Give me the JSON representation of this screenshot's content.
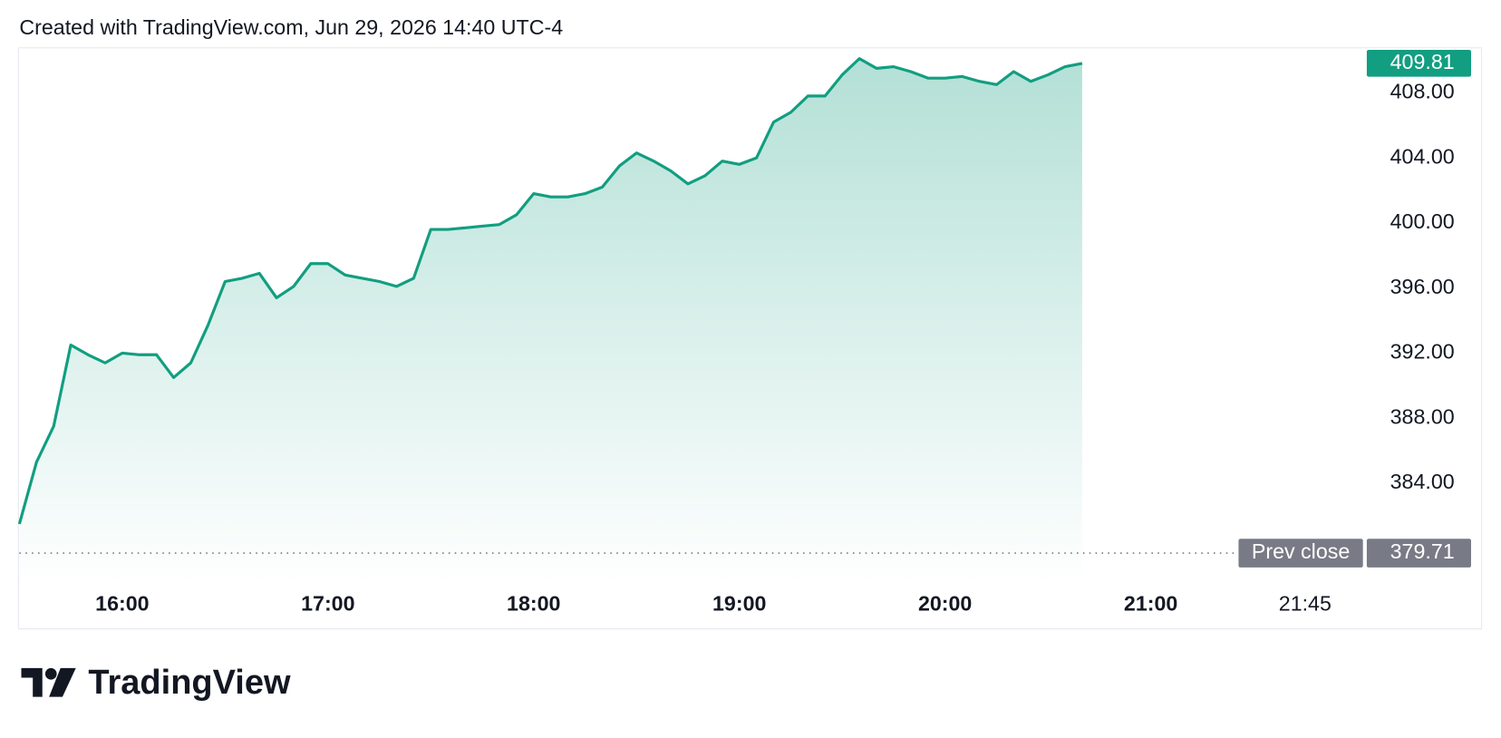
{
  "header": "Created with TradingView.com, Jun 29, 2026 14:40 UTC-4",
  "brand": "TradingView",
  "chart_data": {
    "type": "area",
    "x": [
      "15:30",
      "15:35",
      "15:40",
      "15:45",
      "15:50",
      "15:55",
      "16:00",
      "16:05",
      "16:10",
      "16:15",
      "16:20",
      "16:25",
      "16:30",
      "16:35",
      "16:40",
      "16:45",
      "16:50",
      "16:55",
      "17:00",
      "17:05",
      "17:10",
      "17:15",
      "17:20",
      "17:25",
      "17:30",
      "17:35",
      "17:40",
      "17:45",
      "17:50",
      "17:55",
      "18:00",
      "18:05",
      "18:10",
      "18:15",
      "18:20",
      "18:25",
      "18:30",
      "18:35",
      "18:40",
      "18:45",
      "18:50",
      "18:55",
      "19:00",
      "19:05",
      "19:10",
      "19:15",
      "19:20",
      "19:25",
      "19:30",
      "19:35",
      "19:40",
      "19:45",
      "19:50",
      "19:55",
      "20:00",
      "20:05",
      "20:10",
      "20:15",
      "20:20",
      "20:25",
      "20:30",
      "20:35",
      "20:40"
    ],
    "series": [
      {
        "color": "#129e80",
        "values": [
          381.5,
          385.3,
          387.5,
          392.5,
          391.9,
          391.4,
          392.0,
          391.9,
          391.9,
          390.5,
          391.4,
          393.7,
          396.4,
          396.6,
          396.9,
          395.4,
          396.1,
          397.5,
          397.5,
          396.8,
          396.6,
          396.4,
          396.1,
          396.6,
          399.6,
          399.6,
          399.7,
          399.8,
          399.9,
          400.5,
          401.8,
          401.6,
          401.6,
          401.8,
          402.2,
          403.5,
          404.3,
          403.8,
          403.2,
          402.4,
          402.9,
          403.8,
          403.6,
          404.0,
          406.2,
          406.8,
          407.8,
          407.8,
          409.1,
          410.1,
          409.5,
          409.6,
          409.3,
          408.9,
          408.9,
          409.0,
          408.7,
          408.5,
          409.3,
          408.7,
          409.1,
          409.6,
          409.81
        ]
      }
    ],
    "xlim": [
      "15:30",
      "22:03"
    ],
    "xticks": [
      "16:00",
      "17:00",
      "18:00",
      "19:00",
      "20:00",
      "21:00",
      "21:45"
    ],
    "ylim": [
      377.82,
      410.76
    ],
    "yticks": [
      {
        "value": 384,
        "label": "384.00"
      },
      {
        "value": 388,
        "label": "388.00"
      },
      {
        "value": 392,
        "label": "392.00"
      },
      {
        "value": 396,
        "label": "396.00"
      },
      {
        "value": 400,
        "label": "400.00"
      },
      {
        "value": 404,
        "label": "404.00"
      },
      {
        "value": 408,
        "label": "408.00"
      }
    ],
    "prev_close": 379.71,
    "prev_close_label": "Prev close",
    "prev_close_color": "#787b86"
  }
}
